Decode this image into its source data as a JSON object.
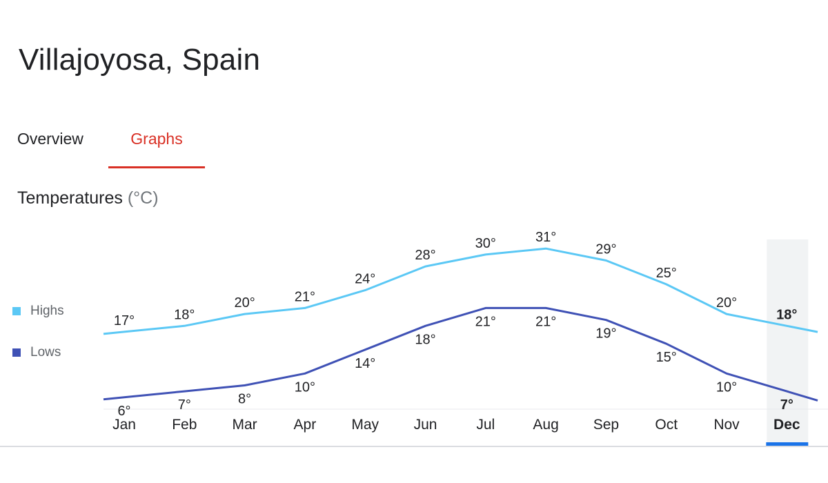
{
  "header": {
    "title": "Villajoyosa, Spain"
  },
  "tabs": [
    {
      "label": "Overview",
      "active": false
    },
    {
      "label": "Graphs",
      "active": true
    }
  ],
  "section": {
    "label": "Temperatures",
    "unit": "(°C)"
  },
  "legend": [
    {
      "label": "Highs",
      "color": "#5bc8f5"
    },
    {
      "label": "Lows",
      "color": "#3f51b5"
    }
  ],
  "colors": {
    "highs": "#5bc8f5",
    "lows": "#3f51b5",
    "accent": "#d93025",
    "selected_bar": "#1a73e8"
  },
  "chart_data": {
    "type": "line",
    "categories": [
      "Jan",
      "Feb",
      "Mar",
      "Apr",
      "May",
      "Jun",
      "Jul",
      "Aug",
      "Sep",
      "Oct",
      "Nov",
      "Dec"
    ],
    "series": [
      {
        "name": "Highs",
        "values": [
          17,
          18,
          20,
          21,
          24,
          28,
          30,
          31,
          29,
          25,
          20,
          18
        ],
        "labels": [
          "17°",
          "18°",
          "20°",
          "21°",
          "24°",
          "28°",
          "30°",
          "31°",
          "29°",
          "25°",
          "20°",
          "18°"
        ]
      },
      {
        "name": "Lows",
        "values": [
          6,
          7,
          8,
          10,
          14,
          18,
          21,
          21,
          19,
          15,
          10,
          7
        ],
        "labels": [
          "6°",
          "7°",
          "8°",
          "10°",
          "14°",
          "18°",
          "21°",
          "21°",
          "19°",
          "15°",
          "10°",
          "7°"
        ]
      }
    ],
    "selected_category": "Dec",
    "ylim": [
      4,
      33
    ],
    "grid": false,
    "legend_position": "left"
  }
}
